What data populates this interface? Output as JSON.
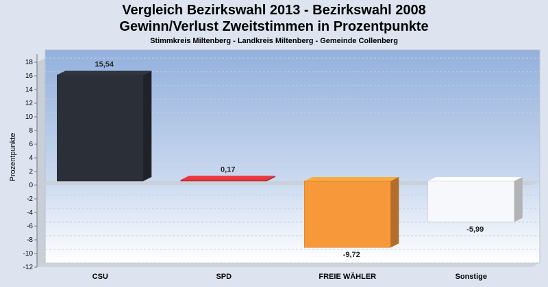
{
  "chart_data": {
    "type": "bar",
    "title": "Vergleich Bezirkswahl 2013 - Bezirkswahl 2008",
    "subtitle_line": "Gewinn/Verlust Zweitstimmen in Prozentpunkte",
    "subtitle": "Stimmkreis Miltenberg - Landkreis Miltenberg - Gemeinde Collenberg",
    "xlabel": "",
    "ylabel": "Prozentpunkte",
    "ylim": [
      -12,
      18
    ],
    "yticks": [
      18,
      16,
      14,
      12,
      10,
      8,
      6,
      4,
      2,
      0,
      -2,
      -4,
      -6,
      -8,
      -10,
      -12
    ],
    "categories": [
      "CSU",
      "SPD",
      "FREIE WÄHLER",
      "Sonstige"
    ],
    "values": [
      15.54,
      0.17,
      -9.72,
      -5.99
    ],
    "value_labels": [
      "15,54",
      "0,17",
      "-9,72",
      "-5,99"
    ],
    "colors": [
      "#2b2f38",
      "#d3313a",
      "#f7993a",
      "#f7f8fb"
    ],
    "grid": true,
    "legend": "none"
  }
}
